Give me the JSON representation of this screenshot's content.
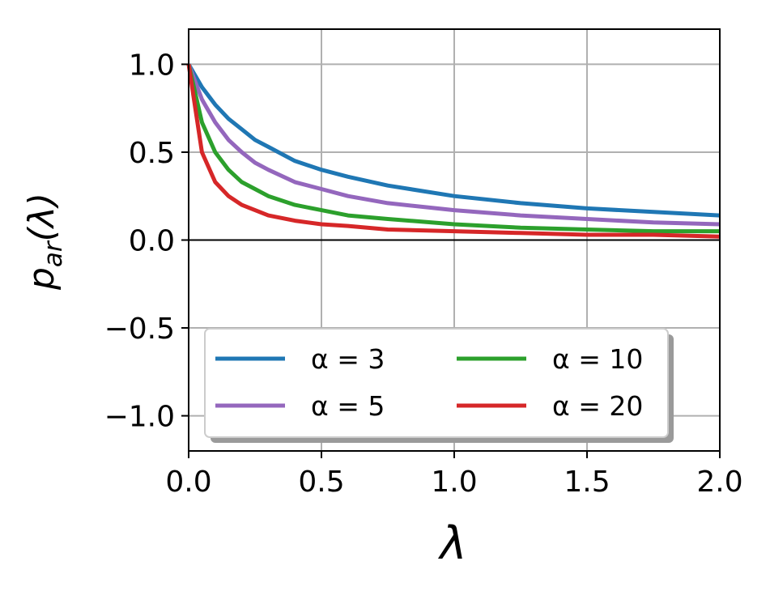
{
  "chart_data": {
    "type": "line",
    "xlabel": "λ",
    "ylabel": "p_ar(λ)",
    "ylabel_main": "p",
    "ylabel_sub": "ar",
    "ylabel_rest": "(λ)",
    "xlim": [
      0.0,
      2.0
    ],
    "ylim": [
      -1.2,
      1.2
    ],
    "grid": true,
    "zero_line": true,
    "x_ticks": [
      0.0,
      0.5,
      1.0,
      1.5,
      2.0
    ],
    "y_ticks": [
      -1.0,
      -0.5,
      0.0,
      0.5,
      1.0
    ],
    "x_tick_labels": [
      "0.0",
      "0.5",
      "1.0",
      "1.5",
      "2.0"
    ],
    "y_tick_labels": [
      "−1.0",
      "−0.5",
      "0.0",
      "0.5",
      "1.0"
    ],
    "legend_position": "lower-center",
    "legend_columns": 2,
    "x": [
      0.0,
      0.05,
      0.1,
      0.15,
      0.2,
      0.25,
      0.3,
      0.4,
      0.5,
      0.6,
      0.75,
      1.0,
      1.25,
      1.5,
      1.75,
      2.0
    ],
    "series": [
      {
        "name": "α = 3",
        "alpha": 3,
        "color": "#1f77b4",
        "values": [
          1.0,
          0.87,
          0.77,
          0.69,
          0.63,
          0.57,
          0.53,
          0.45,
          0.4,
          0.36,
          0.31,
          0.25,
          0.21,
          0.18,
          0.16,
          0.14
        ]
      },
      {
        "name": "α = 5",
        "alpha": 5,
        "color": "#9467bd",
        "values": [
          1.0,
          0.8,
          0.67,
          0.57,
          0.5,
          0.44,
          0.4,
          0.33,
          0.29,
          0.25,
          0.21,
          0.17,
          0.14,
          0.12,
          0.1,
          0.09
        ]
      },
      {
        "name": "α = 10",
        "alpha": 10,
        "color": "#2ca02c",
        "values": [
          1.0,
          0.67,
          0.5,
          0.4,
          0.33,
          0.29,
          0.25,
          0.2,
          0.17,
          0.14,
          0.12,
          0.09,
          0.07,
          0.06,
          0.05,
          0.05
        ]
      },
      {
        "name": "α = 20",
        "alpha": 20,
        "color": "#d62728",
        "values": [
          1.0,
          0.5,
          0.33,
          0.25,
          0.2,
          0.17,
          0.14,
          0.11,
          0.09,
          0.08,
          0.06,
          0.05,
          0.04,
          0.03,
          0.03,
          0.02
        ]
      }
    ]
  }
}
